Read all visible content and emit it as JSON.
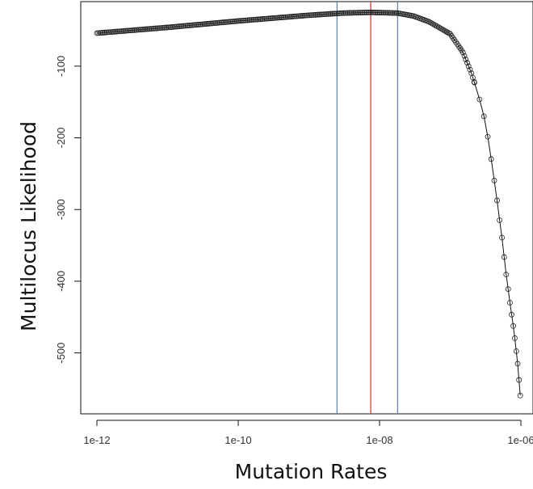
{
  "chart_data": {
    "type": "scatter",
    "title": "",
    "xlabel": "Mutation Rates",
    "ylabel": "Multilocus Likelihood",
    "x_scale": "log10",
    "xlim": [
      1e-12,
      1e-06
    ],
    "ylim": [
      -585,
      -10
    ],
    "x_ticks": [
      1e-12,
      1e-10,
      1e-08,
      1e-06
    ],
    "x_tick_labels": [
      "1e-12",
      "1e-10",
      "1e-08",
      "1e-06"
    ],
    "y_ticks": [
      -100,
      -200,
      -300,
      -400,
      -500
    ],
    "y_tick_labels": [
      "-100",
      "-200",
      "-300",
      "-400",
      "-500"
    ],
    "grid": false,
    "vertical_lines": [
      {
        "x": 2.5e-09,
        "color": "#5b7fa6"
      },
      {
        "x": 7.5e-09,
        "color": "#d02a2a"
      },
      {
        "x": 1.8e-08,
        "color": "#5b7fa6"
      }
    ],
    "series_points": [
      [
        1e-12,
        -54
      ],
      [
        1e-11,
        -46
      ],
      [
        1e-10,
        -37
      ],
      [
        1e-09,
        -29
      ],
      [
        3e-09,
        -26
      ],
      [
        7.5e-09,
        -25
      ],
      [
        1.8e-08,
        -26
      ],
      [
        3e-08,
        -30
      ],
      [
        5e-08,
        -38
      ],
      [
        1e-07,
        -55
      ],
      [
        1.5e-07,
        -80
      ],
      [
        2e-07,
        -110
      ],
      [
        2.5e-07,
        -140
      ],
      [
        3e-07,
        -170
      ],
      [
        3.5e-07,
        -205
      ],
      [
        4e-07,
        -245
      ],
      [
        4.5e-07,
        -280
      ],
      [
        5e-07,
        -315
      ],
      [
        5.5e-07,
        -345
      ],
      [
        6e-07,
        -380
      ],
      [
        7e-07,
        -430
      ],
      [
        8e-07,
        -470
      ],
      [
        9e-07,
        -515
      ],
      [
        1e-06,
        -570
      ]
    ],
    "marker": "open-circle",
    "line_color": "#111111"
  }
}
